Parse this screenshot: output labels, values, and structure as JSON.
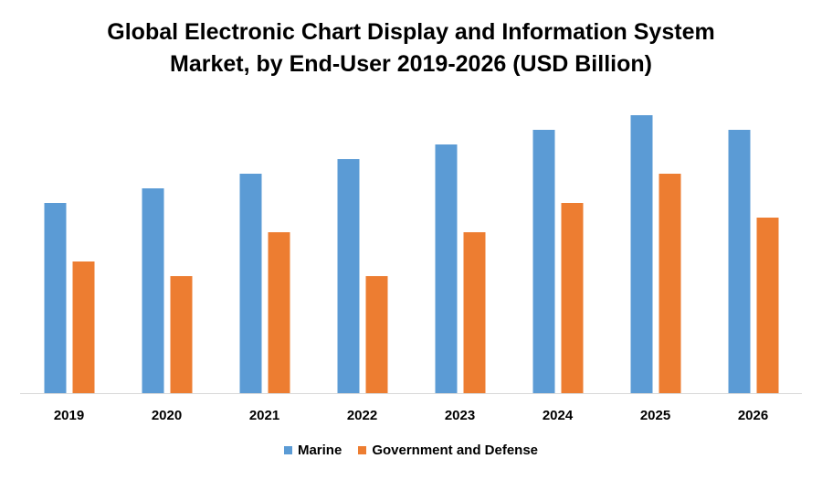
{
  "chart_data": {
    "type": "bar",
    "title_line1": "Global Electronic Chart Display and Information System",
    "title_line2": "Market, by End-User 2019-2026 (USD Billion)",
    "categories": [
      "2019",
      "2020",
      "2021",
      "2022",
      "2023",
      "2024",
      "2025",
      "2026"
    ],
    "series": [
      {
        "name": "Marine",
        "color": "#5B9BD5",
        "values": [
          13,
          14,
          15,
          16,
          17,
          18,
          19,
          18
        ]
      },
      {
        "name": "Government and Defense",
        "color": "#ED7D31",
        "values": [
          9,
          8,
          11,
          8,
          11,
          13,
          15,
          12
        ]
      }
    ],
    "ylim": [
      0,
      20
    ],
    "grid": false,
    "legend": "bottom"
  }
}
